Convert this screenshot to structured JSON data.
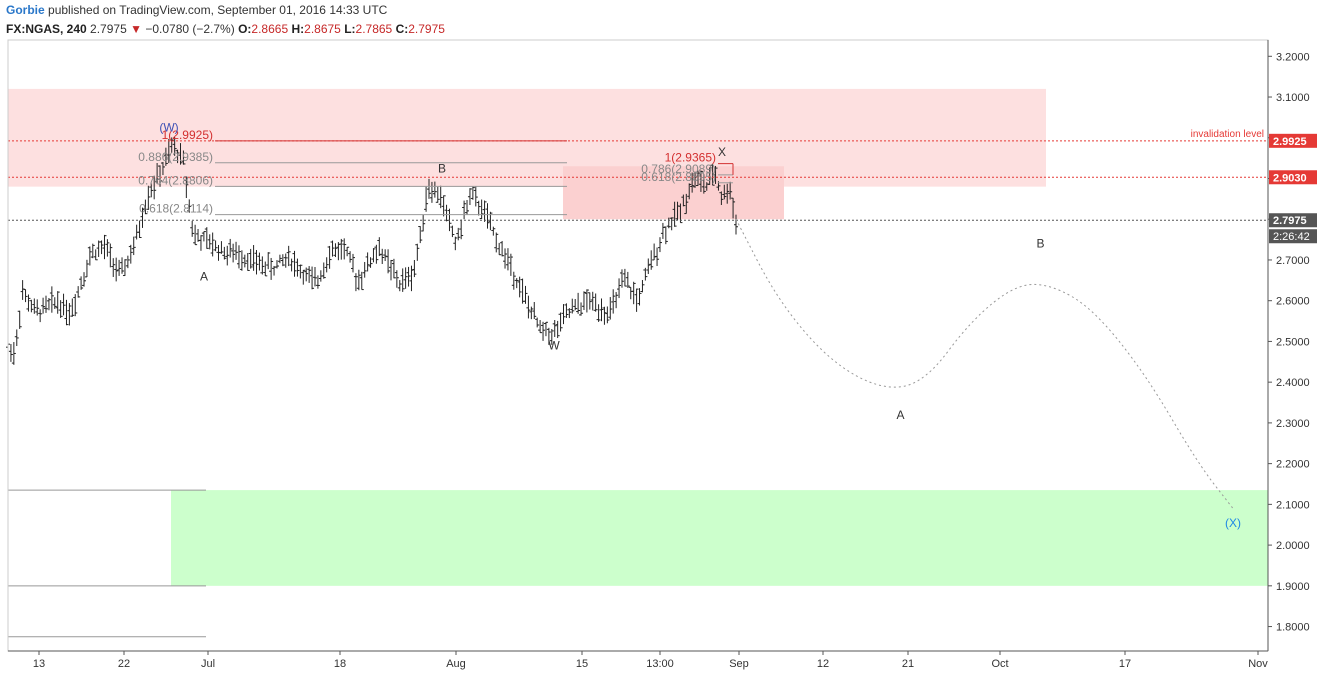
{
  "header": {
    "author": "Gorbie",
    "published": "published on TradingView.com, September 01, 2016 14:33 UTC",
    "symbol": "FX:NGAS, 240",
    "last": "2.7975",
    "change": "−0.0780 (−2.7%)",
    "open_label": "O:",
    "open": "2.8665",
    "high_label": "H:",
    "high": "2.8675",
    "low_label": "L:",
    "low": "2.7865",
    "close_label": "C:",
    "close": "2.7975",
    "change_color": "#c62828"
  },
  "chart_data": {
    "type": "bar",
    "subtype": "ohlc",
    "symbol": "FX:NGAS",
    "interval": "240",
    "ylim": [
      1.74,
      3.24
    ],
    "y_ticks": [
      "1.8000",
      "1.9000",
      "2.0000",
      "2.1000",
      "2.2000",
      "2.3000",
      "2.4000",
      "2.5000",
      "2.6000",
      "2.7000",
      "2.8000",
      "2.9000",
      "3.0000",
      "3.1000",
      "3.2000"
    ],
    "x_ticks": [
      "13",
      "22",
      "Jul",
      "18",
      "Aug",
      "15",
      "13:00",
      "Sep",
      "12",
      "21",
      "Oct",
      "17",
      "Nov"
    ],
    "price_path_ohlc_approx": [
      [
        0.0,
        2.49
      ],
      [
        0.02,
        2.47
      ],
      [
        0.04,
        2.62
      ],
      [
        0.08,
        2.57
      ],
      [
        0.14,
        2.6
      ],
      [
        0.18,
        2.57
      ],
      [
        0.21,
        2.65
      ],
      [
        0.24,
        2.72
      ],
      [
        0.28,
        2.73
      ],
      [
        0.32,
        2.66
      ],
      [
        0.36,
        2.73
      ],
      [
        0.4,
        2.86
      ],
      [
        0.44,
        2.92
      ],
      [
        0.47,
        2.98
      ],
      [
        0.5,
        2.95
      ],
      [
        0.53,
        2.76
      ],
      [
        0.58,
        2.74
      ],
      [
        0.62,
        2.72
      ],
      [
        0.67,
        2.71
      ],
      [
        0.72,
        2.69
      ],
      [
        0.76,
        2.68
      ],
      [
        0.8,
        2.71
      ],
      [
        0.84,
        2.67
      ],
      [
        0.88,
        2.64
      ],
      [
        0.92,
        2.72
      ],
      [
        0.96,
        2.73
      ],
      [
        1.0,
        2.65
      ],
      [
        1.06,
        2.73
      ],
      [
        1.12,
        2.64
      ],
      [
        1.16,
        2.67
      ],
      [
        1.2,
        2.88
      ],
      [
        1.24,
        2.85
      ],
      [
        1.28,
        2.74
      ],
      [
        1.32,
        2.86
      ],
      [
        1.36,
        2.82
      ],
      [
        1.4,
        2.74
      ],
      [
        1.44,
        2.68
      ],
      [
        1.48,
        2.6
      ],
      [
        1.52,
        2.53
      ],
      [
        1.56,
        2.52
      ],
      [
        1.6,
        2.57
      ],
      [
        1.66,
        2.6
      ],
      [
        1.72,
        2.57
      ],
      [
        1.76,
        2.65
      ],
      [
        1.8,
        2.6
      ],
      [
        1.84,
        2.7
      ],
      [
        1.88,
        2.78
      ],
      [
        1.92,
        2.82
      ],
      [
        1.96,
        2.9
      ],
      [
        2.0,
        2.88
      ],
      [
        2.02,
        2.92
      ],
      [
        2.04,
        2.85
      ],
      [
        2.06,
        2.88
      ],
      [
        2.08,
        2.8
      ]
    ],
    "current_price": "2.7975",
    "countdown": "2:26:42",
    "price_labels": [
      {
        "value": 2.9925,
        "text": "2.9925",
        "color": "#e53935"
      },
      {
        "value": 2.903,
        "text": "2.9030",
        "color": "#e53935"
      },
      {
        "value": 2.7975,
        "text": "2.7975",
        "color": "#555555"
      }
    ],
    "horizontal_lines": [
      {
        "value": 2.9925,
        "label": "invalidation level",
        "color": "#e53935",
        "style": "dotted"
      },
      {
        "value": 2.903,
        "color": "#e53935",
        "style": "dotted"
      },
      {
        "value": 2.7975,
        "color": "#555555",
        "style": "dotted"
      }
    ],
    "zones": [
      {
        "y0": 2.88,
        "y1": 3.12,
        "color": "#fde0e0"
      },
      {
        "y0": 2.8,
        "y1": 2.93,
        "color": "#fbd0d0"
      },
      {
        "y0": 1.9,
        "y1": 2.135,
        "color": "#ccffcc"
      }
    ],
    "fib_sets": [
      {
        "name": "first",
        "levels": [
          {
            "value": 2.9925,
            "text": "1(2.9925)",
            "color": "#d32f2f"
          },
          {
            "value": 2.9385,
            "text": "0.886(2.9385)",
            "color": "#888888"
          },
          {
            "value": 2.8806,
            "text": "0.764(2.8806)",
            "color": "#888888"
          },
          {
            "value": 2.8114,
            "text": "0.618(2.8114)",
            "color": "#888888"
          }
        ]
      },
      {
        "name": "second",
        "levels": [
          {
            "value": 2.9365,
            "text": "1(2.9365)",
            "color": "#d32f2f"
          },
          {
            "value": 2.9089,
            "text": "0.786(2.9089)",
            "color": "#888888"
          },
          {
            "value": 2.8895,
            "text": "0.618(2.8895)",
            "color": "#888888"
          }
        ]
      }
    ],
    "wave_labels": [
      {
        "text": "(W)",
        "x": 0.46,
        "y": 3.015,
        "color": "#3f51b5"
      },
      {
        "text": "A",
        "x": 0.56,
        "y": 2.65,
        "color": "#333333"
      },
      {
        "text": "B",
        "x": 1.24,
        "y": 2.915,
        "color": "#333333"
      },
      {
        "text": "W",
        "x": 1.56,
        "y": 2.48,
        "color": "#333333"
      },
      {
        "text": "X",
        "x": 2.04,
        "y": 2.955,
        "color": "#333333"
      },
      {
        "text": "A",
        "x": 2.55,
        "y": 2.31,
        "color": "#333333"
      },
      {
        "text": "B",
        "x": 2.95,
        "y": 2.73,
        "color": "#333333"
      },
      {
        "text": "(X)",
        "x": 3.5,
        "y": 2.045,
        "color": "#1e88e5"
      }
    ],
    "projection_path": [
      [
        2.08,
        2.8
      ],
      [
        2.2,
        2.6
      ],
      [
        2.35,
        2.45
      ],
      [
        2.5,
        2.38
      ],
      [
        2.62,
        2.4
      ],
      [
        2.75,
        2.55
      ],
      [
        2.88,
        2.64
      ],
      [
        2.98,
        2.64
      ],
      [
        3.1,
        2.58
      ],
      [
        3.25,
        2.42
      ],
      [
        3.4,
        2.2
      ],
      [
        3.5,
        2.09
      ]
    ],
    "grid": false,
    "legend": "none"
  }
}
